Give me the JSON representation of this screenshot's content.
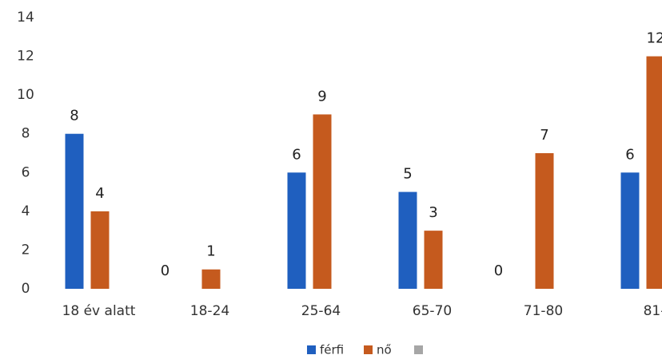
{
  "chart_data": {
    "type": "bar",
    "categories": [
      "18 év alatt",
      "18-24",
      "25-64",
      "65-70",
      "71-80",
      "81-"
    ],
    "series": [
      {
        "name": "férfi",
        "color": "#1f5fbf",
        "values": [
          8,
          0,
          6,
          5,
          0,
          6
        ]
      },
      {
        "name": "nő",
        "color": "#c55a1e",
        "values": [
          4,
          1,
          9,
          3,
          7,
          12
        ]
      }
    ],
    "ylim": [
      0,
      14
    ],
    "yticks": [
      0,
      2,
      4,
      6,
      8,
      10,
      12,
      14
    ],
    "grid": false
  }
}
